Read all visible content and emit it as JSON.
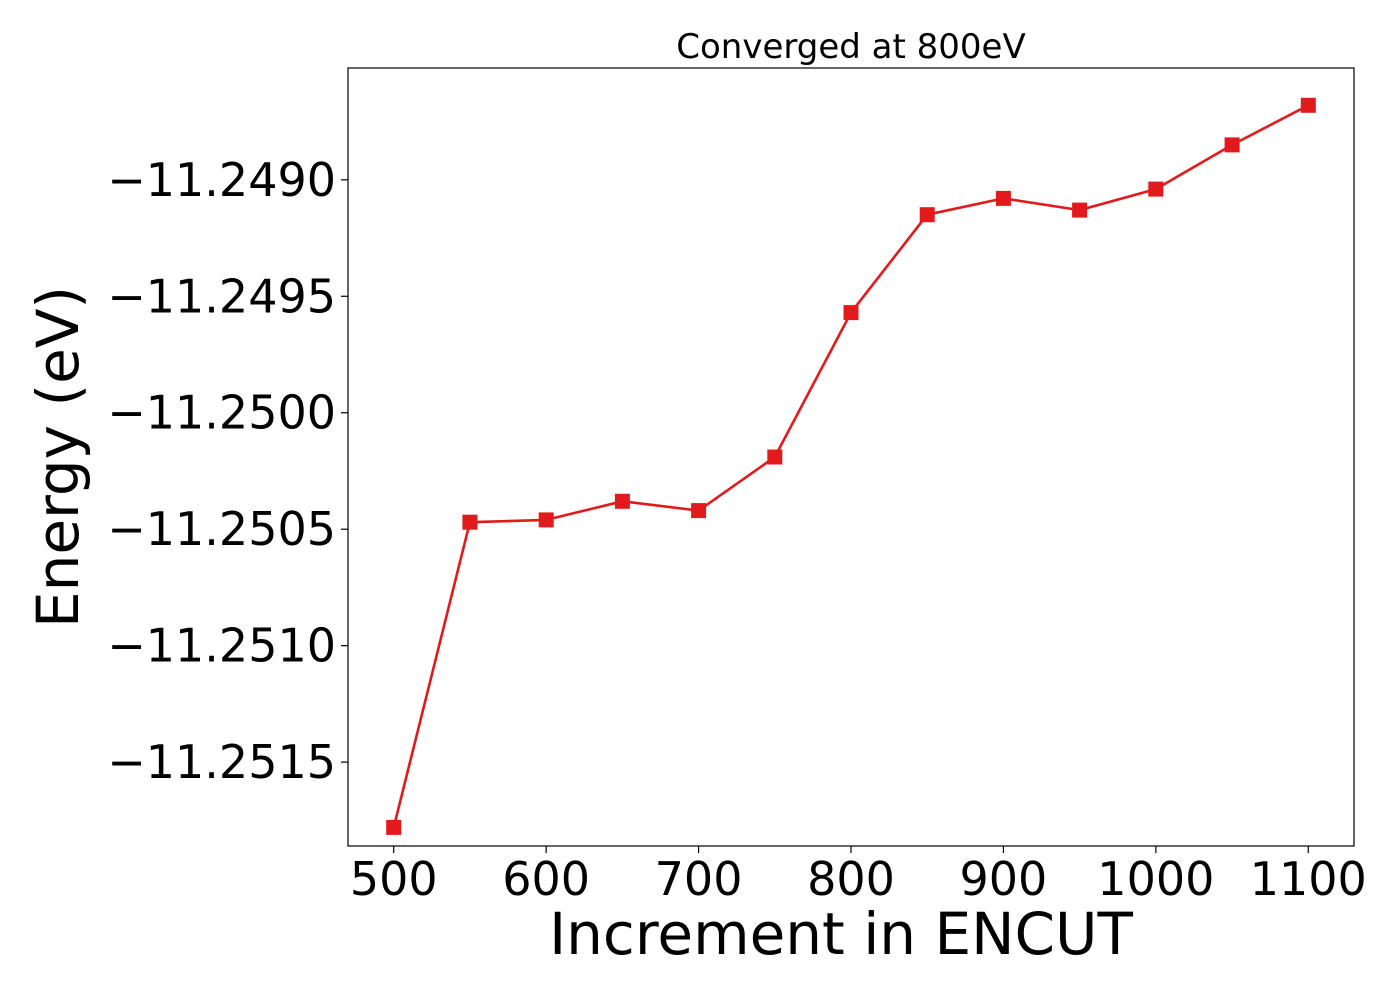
{
  "chart_data": {
    "type": "line",
    "title": "Converged at 800eV",
    "xlabel": "Increment in ENCUT",
    "ylabel": "Energy (eV)",
    "x": [
      500,
      550,
      600,
      650,
      700,
      750,
      800,
      850,
      900,
      950,
      1000,
      1050,
      1100
    ],
    "series": [
      {
        "values": [
          -11.25178,
          -11.25047,
          -11.25046,
          -11.25038,
          -11.25042,
          -11.25019,
          -11.24957,
          -11.24915,
          -11.24908,
          -11.24913,
          -11.24904,
          -11.24885,
          -11.24868
        ],
        "color": "#e31a1c",
        "marker": "square"
      }
    ],
    "xlim": [
      470,
      1130
    ],
    "ylim": [
      -11.25186,
      -11.24852
    ],
    "xticks": [
      500,
      600,
      700,
      800,
      900,
      1000,
      1100
    ],
    "xtick_labels": [
      "500",
      "600",
      "700",
      "800",
      "900",
      "1000",
      "1100"
    ],
    "yticks": [
      -11.249,
      -11.2495,
      -11.25,
      -11.2505,
      -11.251,
      -11.2515
    ],
    "ytick_labels": [
      "−11.2490",
      "−11.2495",
      "−11.2500",
      "−11.2505",
      "−11.2510",
      "−11.2515"
    ],
    "grid": false,
    "legend": "none"
  }
}
